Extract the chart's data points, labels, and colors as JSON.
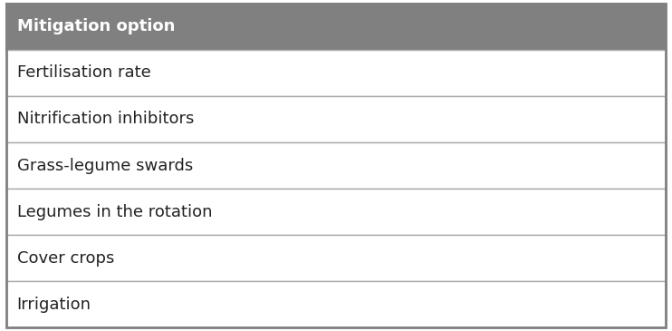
{
  "header": "Mitigation option",
  "rows": [
    "Fertilisation rate",
    "Nitrification inhibitors",
    "Grass-legume swards",
    "Legumes in the rotation",
    "Cover crops",
    "Irrigation"
  ],
  "header_bg_color": "#808080",
  "header_text_color": "#ffffff",
  "row_bg_color": "#ffffff",
  "row_text_color": "#222222",
  "border_color": "#aaaaaa",
  "outer_border_color": "#808080",
  "fig_bg_color": "#ffffff",
  "header_fontsize": 13,
  "row_fontsize": 13,
  "fig_width": 7.42,
  "fig_height": 3.65
}
